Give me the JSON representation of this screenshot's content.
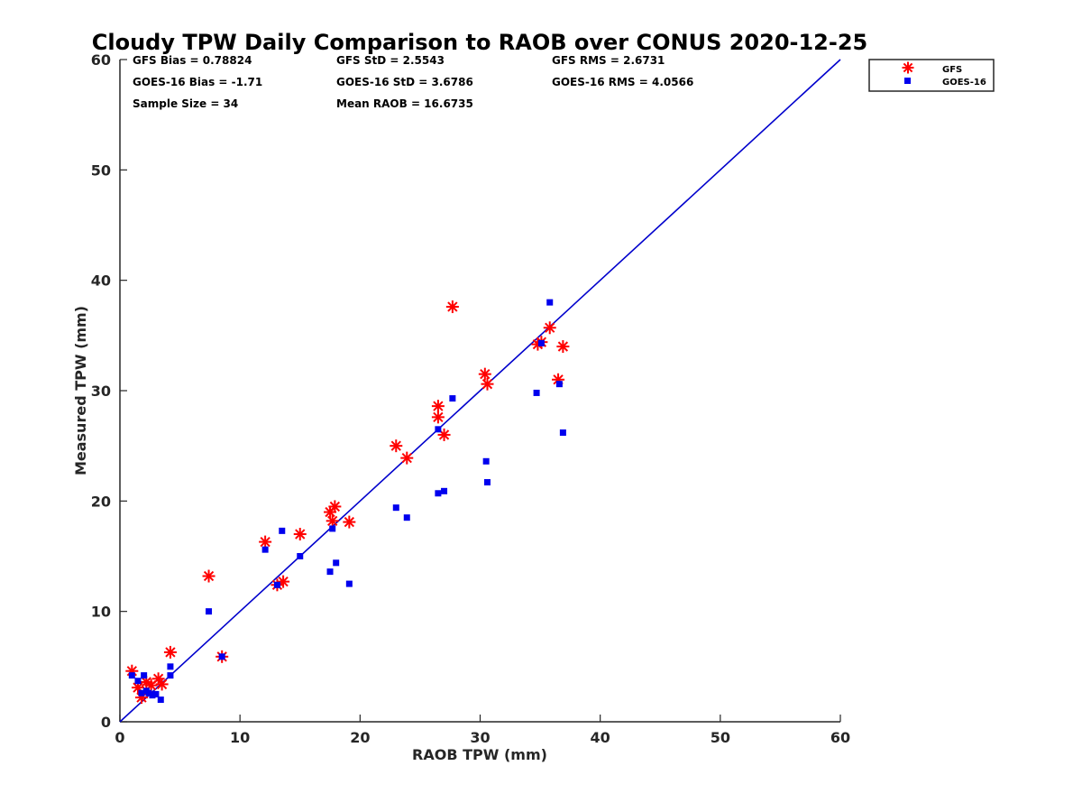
{
  "chart_data": {
    "type": "scatter",
    "title": "Cloudy TPW Daily Comparison to RAOB over CONUS 2020-12-25",
    "xlabel": "RAOB TPW (mm)",
    "ylabel": "Measured TPW (mm)",
    "xlim": [
      0,
      60
    ],
    "ylim": [
      0,
      60
    ],
    "xticks": [
      "0",
      "10",
      "20",
      "30",
      "40",
      "50",
      "60"
    ],
    "yticks": [
      "0",
      "10",
      "20",
      "30",
      "40",
      "50",
      "60"
    ],
    "grid": false,
    "legend_position": "outside-top-right",
    "one_to_one_line": {
      "color": "#0000cc"
    },
    "stats": [
      {
        "text": "GFS Bias = 0.78824"
      },
      {
        "text": "GFS StD = 2.5543"
      },
      {
        "text": "GFS RMS = 2.6731"
      },
      {
        "text": "GOES-16 Bias = -1.71"
      },
      {
        "text": "GOES-16 StD = 3.6786"
      },
      {
        "text": "GOES-16 RMS = 4.0566"
      },
      {
        "text": "Sample Size = 34"
      },
      {
        "text": "Mean RAOB = 16.6735"
      }
    ],
    "series": [
      {
        "name": "GFS",
        "marker": "asterisk",
        "color": "#ff0000",
        "points": [
          [
            1.0,
            4.6
          ],
          [
            1.5,
            3.1
          ],
          [
            1.8,
            2.2
          ],
          [
            2.2,
            3.6
          ],
          [
            2.6,
            3.3
          ],
          [
            3.2,
            3.9
          ],
          [
            3.5,
            3.4
          ],
          [
            4.2,
            6.3
          ],
          [
            7.4,
            13.2
          ],
          [
            8.5,
            5.9
          ],
          [
            12.1,
            16.3
          ],
          [
            13.1,
            12.4
          ],
          [
            13.6,
            12.7
          ],
          [
            15.0,
            17.0
          ],
          [
            17.5,
            19.0
          ],
          [
            17.7,
            18.2
          ],
          [
            17.9,
            19.5
          ],
          [
            19.1,
            18.1
          ],
          [
            23.0,
            25.0
          ],
          [
            23.9,
            23.9
          ],
          [
            26.5,
            28.6
          ],
          [
            26.5,
            27.6
          ],
          [
            27.0,
            26.0
          ],
          [
            27.7,
            37.6
          ],
          [
            30.4,
            31.5
          ],
          [
            30.6,
            30.6
          ],
          [
            34.8,
            34.2
          ],
          [
            35.1,
            34.4
          ],
          [
            35.8,
            35.7
          ],
          [
            36.5,
            31.0
          ],
          [
            36.9,
            34.0
          ]
        ]
      },
      {
        "name": "GOES-16",
        "marker": "square",
        "color": "#0000ee",
        "points": [
          [
            1.0,
            4.2
          ],
          [
            1.5,
            3.7
          ],
          [
            1.8,
            2.6
          ],
          [
            2.0,
            4.2
          ],
          [
            2.2,
            2.8
          ],
          [
            2.4,
            2.6
          ],
          [
            2.7,
            2.4
          ],
          [
            3.0,
            2.5
          ],
          [
            3.4,
            2.0
          ],
          [
            4.2,
            4.2
          ],
          [
            4.2,
            5.0
          ],
          [
            7.4,
            10.0
          ],
          [
            8.5,
            5.9
          ],
          [
            12.1,
            15.6
          ],
          [
            13.1,
            12.4
          ],
          [
            13.5,
            17.3
          ],
          [
            15.0,
            15.0
          ],
          [
            17.5,
            13.6
          ],
          [
            17.7,
            17.5
          ],
          [
            18.0,
            14.4
          ],
          [
            19.1,
            12.5
          ],
          [
            23.0,
            19.4
          ],
          [
            23.9,
            18.5
          ],
          [
            26.5,
            20.7
          ],
          [
            26.5,
            26.5
          ],
          [
            27.0,
            20.9
          ],
          [
            27.7,
            29.3
          ],
          [
            30.5,
            23.6
          ],
          [
            30.6,
            21.7
          ],
          [
            34.7,
            29.8
          ],
          [
            35.1,
            34.3
          ],
          [
            35.8,
            38.0
          ],
          [
            36.6,
            30.6
          ],
          [
            36.9,
            26.2
          ]
        ]
      }
    ]
  }
}
